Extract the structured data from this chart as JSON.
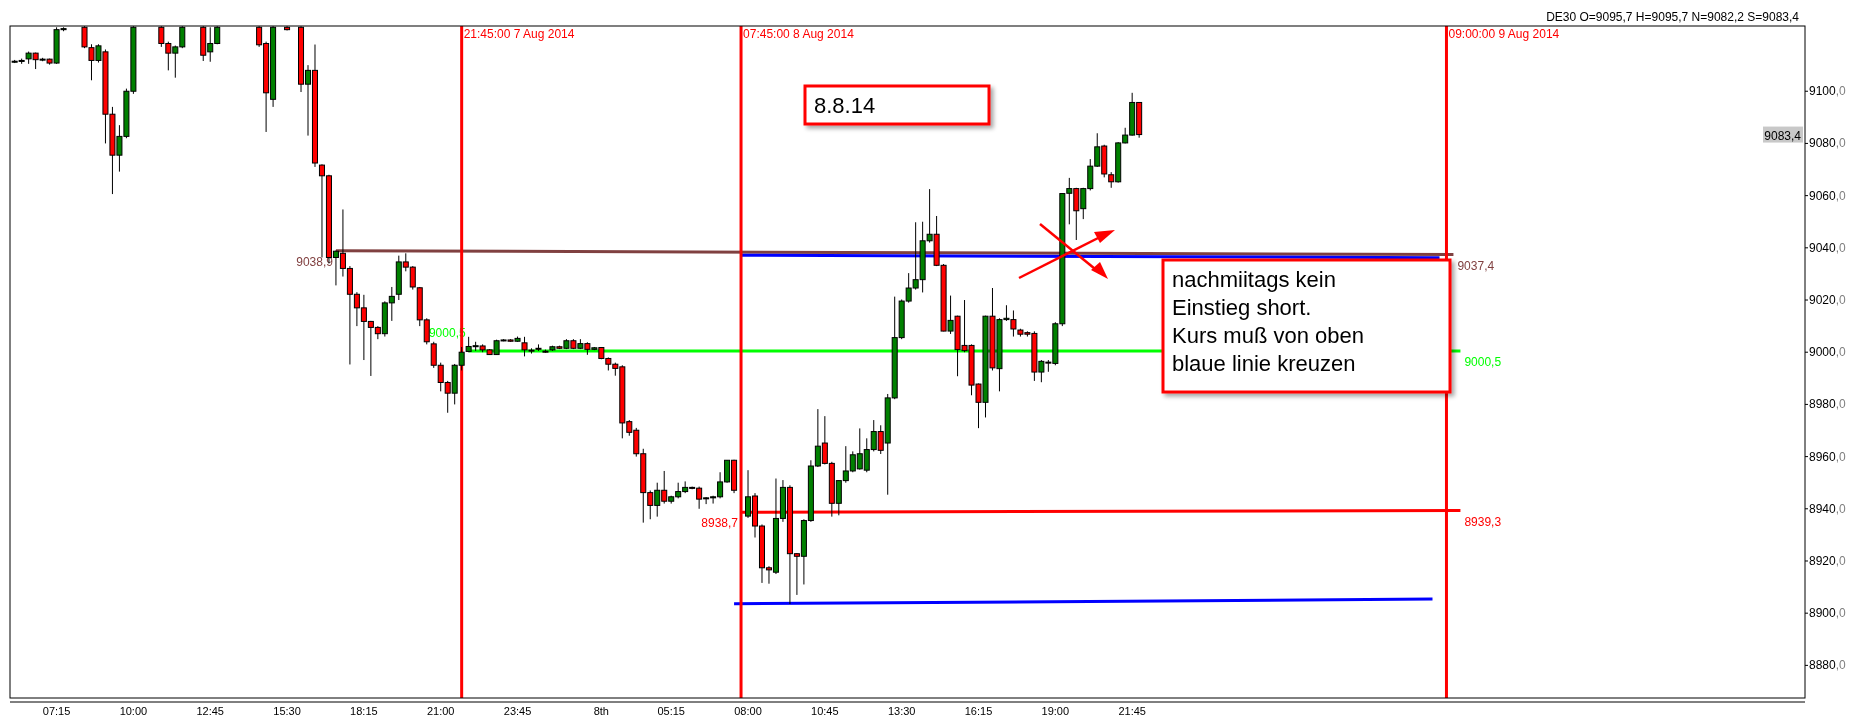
{
  "chart_data": {
    "type": "candlestick",
    "title": "DE30 O=9095,7 H=9095,7 N=9082,2 S=9083,4",
    "x": [
      "2014-08-07T05:45",
      "2014-08-07T06:00",
      "2014-08-07T06:15",
      "2014-08-07T06:30",
      "2014-08-07T06:45",
      "2014-08-07T07:00",
      "2014-08-07T07:15",
      "2014-08-07T07:30",
      "2014-08-07T08:15",
      "2014-08-07T08:30",
      "2014-08-07T08:45",
      "2014-08-07T09:00",
      "2014-08-07T09:15",
      "2014-08-07T09:30",
      "2014-08-07T09:45",
      "2014-08-07T10:00",
      "2014-08-07T11:00",
      "2014-08-07T11:15",
      "2014-08-07T11:30",
      "2014-08-07T11:45",
      "2014-08-07T12:30",
      "2014-08-07T12:45",
      "2014-08-07T13:00",
      "2014-08-07T14:30",
      "2014-08-07T14:45",
      "2014-08-07T15:00",
      "2014-08-07T15:30",
      "2014-08-07T16:00",
      "2014-08-07T16:15",
      "2014-08-07T16:30",
      "2014-08-07T16:45",
      "2014-08-07T17:00",
      "2014-08-07T17:15",
      "2014-08-07T17:30",
      "2014-08-07T17:45",
      "2014-08-07T18:00",
      "2014-08-07T18:15",
      "2014-08-07T18:30",
      "2014-08-07T18:45",
      "2014-08-07T19:00",
      "2014-08-07T19:15",
      "2014-08-07T19:30",
      "2014-08-07T19:45",
      "2014-08-07T20:00",
      "2014-08-07T20:15",
      "2014-08-07T20:30",
      "2014-08-07T20:45",
      "2014-08-07T21:00",
      "2014-08-07T21:15",
      "2014-08-07T21:30",
      "2014-08-07T21:45",
      "2014-08-07T22:00",
      "2014-08-07T22:15",
      "2014-08-07T22:30",
      "2014-08-07T22:45",
      "2014-08-07T23:00",
      "2014-08-07T23:15",
      "2014-08-07T23:30",
      "2014-08-07T23:45",
      "2014-08-08T00:00",
      "2014-08-08T00:15",
      "2014-08-08T00:30",
      "2014-08-08T00:45",
      "2014-08-08T01:00",
      "2014-08-08T01:15",
      "2014-08-08T01:30",
      "2014-08-08T01:45",
      "2014-08-08T02:00",
      "2014-08-08T02:15",
      "2014-08-08T02:30",
      "2014-08-08T02:45",
      "2014-08-08T03:00",
      "2014-08-08T03:15",
      "2014-08-08T03:30",
      "2014-08-08T03:45",
      "2014-08-08T04:00",
      "2014-08-08T04:15",
      "2014-08-08T04:30",
      "2014-08-08T04:45",
      "2014-08-08T05:00",
      "2014-08-08T05:15",
      "2014-08-08T05:30",
      "2014-08-08T05:45",
      "2014-08-08T06:00",
      "2014-08-08T06:15",
      "2014-08-08T06:30",
      "2014-08-08T06:45",
      "2014-08-08T07:00",
      "2014-08-08T07:15",
      "2014-08-08T07:30",
      "2014-08-08T08:00",
      "2014-08-08T08:15",
      "2014-08-08T08:30",
      "2014-08-08T08:45",
      "2014-08-08T09:00",
      "2014-08-08T09:15",
      "2014-08-08T09:30",
      "2014-08-08T09:45",
      "2014-08-08T10:00",
      "2014-08-08T10:15",
      "2014-08-08T10:30",
      "2014-08-08T10:45",
      "2014-08-08T11:00",
      "2014-08-08T11:15",
      "2014-08-08T11:30",
      "2014-08-08T11:45",
      "2014-08-08T12:00",
      "2014-08-08T12:15",
      "2014-08-08T12:30",
      "2014-08-08T12:45",
      "2014-08-08T13:00",
      "2014-08-08T13:15",
      "2014-08-08T13:30",
      "2014-08-08T13:45",
      "2014-08-08T14:00",
      "2014-08-08T14:15",
      "2014-08-08T14:30",
      "2014-08-08T14:45",
      "2014-08-08T15:00",
      "2014-08-08T15:15",
      "2014-08-08T15:30",
      "2014-08-08T15:45",
      "2014-08-08T16:00",
      "2014-08-08T16:15",
      "2014-08-08T16:30",
      "2014-08-08T16:45",
      "2014-08-08T17:00",
      "2014-08-08T17:15",
      "2014-08-08T17:30",
      "2014-08-08T17:45",
      "2014-08-08T18:00",
      "2014-08-08T18:15",
      "2014-08-08T18:30",
      "2014-08-08T18:45",
      "2014-08-08T19:00",
      "2014-08-08T19:15",
      "2014-08-08T19:30",
      "2014-08-08T19:45",
      "2014-08-08T20:00",
      "2014-08-08T20:15",
      "2014-08-08T20:30",
      "2014-08-08T20:45",
      "2014-08-08T21:00",
      "2014-08-08T21:15",
      "2014-08-08T21:30",
      "2014-08-08T21:45",
      "2014-08-08T22:00"
    ],
    "ohlc": [
      [
        9111.2,
        9112,
        9110.8,
        9111.5
      ],
      [
        9111.5,
        9112.5,
        9110.5,
        9111.8
      ],
      [
        9112.4,
        9115.2,
        9110.5,
        9114.6
      ],
      [
        9114.6,
        9114.8,
        9108.5,
        9112.1
      ],
      [
        9112.1,
        9112.8,
        9111.5,
        9112.3
      ],
      [
        9112.3,
        9112.5,
        9110.2,
        9110.8
      ],
      [
        9110.8,
        9124.5,
        9110.5,
        9123.6
      ],
      [
        9123.6,
        9124.5,
        9123,
        9124
      ],
      [
        9124.5,
        9124.9,
        9116.5,
        9117
      ],
      [
        9116.7,
        9118,
        9104.2,
        9111.8
      ],
      [
        9111.8,
        9118,
        9111,
        9117.4
      ],
      [
        9115.1,
        9116,
        9080,
        9091.2
      ],
      [
        9091.2,
        9094,
        9060.6,
        9075.5
      ],
      [
        9075.5,
        9087,
        9069.2,
        9082.7
      ],
      [
        9082.7,
        9101,
        9082,
        9100
      ],
      [
        9100,
        9124.9,
        9099,
        9124.5
      ],
      [
        9124.5,
        9124.9,
        9117,
        9118.3
      ],
      [
        9118.3,
        9119,
        9108,
        9114.6
      ],
      [
        9114.6,
        9117.5,
        9105.2,
        9117
      ],
      [
        9117,
        9124.9,
        9116.5,
        9124.5
      ],
      [
        9124.5,
        9124.9,
        9111.6,
        9113.8
      ],
      [
        9115.1,
        9124.5,
        9111.3,
        9118.3
      ],
      [
        9118.3,
        9124.9,
        9118,
        9124.5
      ],
      [
        9124.5,
        9124.9,
        9117,
        9117.8
      ],
      [
        9118.3,
        9119,
        9084.4,
        9099.4
      ],
      [
        9096.9,
        9124.9,
        9094,
        9124.5
      ],
      [
        9124.5,
        9124.9,
        9123.3,
        9123.6
      ],
      [
        9124.5,
        9124.9,
        9099.7,
        9102.7
      ],
      [
        9102.7,
        9110,
        9083,
        9108
      ],
      [
        9108,
        9117.9,
        9071,
        9072.5
      ],
      [
        9071.7,
        9072,
        9036.3,
        9067.6
      ],
      [
        9067.6,
        9068,
        9034,
        9036.3
      ],
      [
        9036.3,
        9039,
        9025.6,
        9038.7
      ],
      [
        9037.9,
        9054.7,
        9029,
        9032.1
      ],
      [
        9032.1,
        9033,
        8995.3,
        9022.2
      ],
      [
        9022.2,
        9023,
        9010,
        9017
      ],
      [
        9017,
        9022,
        8997,
        9011.8
      ],
      [
        9011.8,
        9012,
        8990.9,
        9009.5
      ],
      [
        9009.5,
        9010,
        9005,
        9007.1
      ],
      [
        9007.1,
        9019.5,
        9006,
        9018.9
      ],
      [
        9018.9,
        9025,
        9012,
        9021.4
      ],
      [
        9022.2,
        9037,
        9020,
        9034.6
      ],
      [
        9034.6,
        9037.9,
        9031,
        9032.6
      ],
      [
        9032.6,
        9033,
        9024,
        9025
      ],
      [
        9024.7,
        9025,
        9010,
        9012.4
      ],
      [
        9012.4,
        9013,
        9003,
        9004
      ],
      [
        9003.2,
        9004,
        8994,
        8995
      ],
      [
        8995,
        8996,
        8985,
        8988.4
      ],
      [
        8988.4,
        8989,
        8976.8,
        8984.3
      ],
      [
        8984.3,
        8995.5,
        8980,
        8995
      ],
      [
        8995,
        9002,
        8993,
        9000
      ],
      [
        9000.3,
        9005.9,
        9000,
        9002.2
      ],
      [
        9002.2,
        9004,
        9000.5,
        9002.5
      ],
      [
        9002.4,
        9003,
        9000,
        9000.9
      ],
      [
        9000.9,
        9001.2,
        8999,
        8999.1
      ],
      [
        8999.1,
        9004.8,
        8999,
        9004.4
      ],
      [
        9004.4,
        9005,
        9004.2,
        9004.7
      ],
      [
        9004.7,
        9005,
        9004,
        9004.2
      ],
      [
        9004.2,
        9006,
        9004,
        9005.3
      ],
      [
        9003.6,
        9005.9,
        8998.4,
        9000.9
      ],
      [
        9000.8,
        9001.5,
        8999.5,
        9000.5
      ],
      [
        9001.5,
        9003,
        9000.5,
        9001.3
      ],
      [
        9000.4,
        9001,
        8999.8,
        9000.3
      ],
      [
        9000.9,
        9002.5,
        9000.5,
        9002.1
      ],
      [
        9002.1,
        9002.5,
        9001.2,
        9001.5
      ],
      [
        9001.5,
        9005,
        9001.2,
        9004.4
      ],
      [
        9004.4,
        9005,
        9001.2,
        9001.5
      ],
      [
        9001.5,
        9005,
        9001.2,
        9003.3
      ],
      [
        9003.3,
        9003.8,
        8999,
        9001.1
      ],
      [
        9001.1,
        9002,
        9000.8,
        9001.7
      ],
      [
        9001.8,
        9002,
        8997.3,
        8997.6
      ],
      [
        8997.6,
        8998,
        8993,
        8995.4
      ],
      [
        8995.4,
        8996,
        8991,
        8993.8
      ],
      [
        8994.4,
        8995,
        8967,
        8972.9
      ],
      [
        8973.4,
        8974,
        8968,
        8969.3
      ],
      [
        8970.1,
        8971,
        8960,
        8961.1
      ],
      [
        8961.1,
        8963,
        8934.7,
        8946.2
      ],
      [
        8946.2,
        8947,
        8936,
        8941.3
      ],
      [
        8941.3,
        8950,
        8937,
        8947.1
      ],
      [
        8947.1,
        8954.5,
        8942,
        8942.9
      ],
      [
        8942.9,
        8945,
        8942,
        8944.6
      ],
      [
        8944.6,
        8950,
        8944,
        8946.6
      ],
      [
        8946.6,
        8950.5,
        8946,
        8948.2
      ],
      [
        8948.2,
        8948.5,
        8947.5,
        8947.9
      ],
      [
        8947.9,
        8948.5,
        8940,
        8943.7
      ],
      [
        8943.9,
        8944.5,
        8941.8,
        8944.2
      ],
      [
        8944.2,
        8945,
        8942,
        8944.6
      ],
      [
        8944.6,
        8954,
        8944,
        8950.3
      ],
      [
        8950.3,
        8958.6,
        8950,
        8958.6
      ],
      [
        8958.6,
        8958.8,
        8946,
        8947.1
      ],
      [
        8937.2,
        8954.8,
        8936.5,
        8944.6
      ],
      [
        8944.9,
        8946,
        8929,
        8933.4
      ],
      [
        8933.4,
        8934,
        8911.6,
        8917.4
      ],
      [
        8917.4,
        8918,
        8911.3,
        8916.6
      ],
      [
        8915.7,
        8951.6,
        8915,
        8936.3
      ],
      [
        8936.3,
        8951,
        8935,
        8948.2
      ],
      [
        8948.2,
        8949,
        8903.5,
        8922.8
      ],
      [
        8922.8,
        8923,
        8907,
        8921.8
      ],
      [
        8921.8,
        8936,
        8911,
        8935.5
      ],
      [
        8935.5,
        8958.6,
        8935,
        8956.4
      ],
      [
        8956.4,
        8978.2,
        8956,
        8964
      ],
      [
        8965.2,
        8975.5,
        8957,
        8957.4
      ],
      [
        8957.4,
        8958,
        8937,
        8942.1
      ],
      [
        8942.1,
        8951,
        8937.5,
        8950.8
      ],
      [
        8950.8,
        8964,
        8950,
        8954.5
      ],
      [
        8954.5,
        8962,
        8954,
        8960.7
      ],
      [
        8955.3,
        8970.8,
        8955,
        8961.1
      ],
      [
        8954.8,
        8967,
        8954,
        8962.7
      ],
      [
        8962.7,
        8974,
        8962,
        8969.6
      ],
      [
        8969.6,
        8972,
        8961,
        8962.4
      ],
      [
        8965.2,
        8984,
        8945.4,
        8982.5
      ],
      [
        8982.5,
        9021.3,
        8982,
        9005.6
      ],
      [
        9005.6,
        9020.2,
        9005,
        9019.6
      ],
      [
        9019.6,
        9030.3,
        9019,
        9024.6
      ],
      [
        9024.6,
        9049.8,
        9024,
        9027.8
      ],
      [
        9027.8,
        9050,
        9022.9,
        9042.7
      ],
      [
        9042.7,
        9062.5,
        9042,
        9045.2
      ],
      [
        9045.2,
        9052.2,
        9033,
        9033.3
      ],
      [
        9033.3,
        9033.8,
        9008,
        9008.1
      ],
      [
        9008.1,
        9021.7,
        9007,
        9012.2
      ],
      [
        9013.8,
        9014,
        8990.8,
        9001
      ],
      [
        9002.6,
        9020,
        9000,
        9000.6
      ],
      [
        9002.6,
        9003,
        8983.5,
        8987.4
      ],
      [
        8987.8,
        8988,
        8970.9,
        8980.8
      ],
      [
        8980.8,
        9014,
        8975,
        9013.8
      ],
      [
        9013.8,
        9024.6,
        8993,
        8994
      ],
      [
        8993.7,
        9013,
        8985,
        9012.5
      ],
      [
        9012.5,
        9018,
        9012,
        9013
      ],
      [
        9012.5,
        9016,
        9006,
        9008.9
      ],
      [
        9008.5,
        9009,
        9006,
        9006.9
      ],
      [
        9007.5,
        9008,
        9006,
        9006.9
      ],
      [
        9007.2,
        9008,
        8989,
        8992.4
      ],
      [
        8992.4,
        8997,
        8988.5,
        8996.5
      ],
      [
        8996.2,
        8997,
        8992.5,
        8996
      ],
      [
        8995.7,
        9011.5,
        8995,
        9010.9
      ],
      [
        9010.9,
        9061,
        9010,
        9060.8
      ],
      [
        9060.9,
        9066.8,
        9049,
        9062.7
      ],
      [
        9062.7,
        9063,
        9043,
        9054.2
      ],
      [
        9055,
        9063,
        9051,
        9062.7
      ],
      [
        9062.7,
        9074,
        9062,
        9071.3
      ],
      [
        9071.3,
        9083.9,
        9071,
        9078.7
      ],
      [
        9079,
        9079.5,
        9067,
        9068.3
      ],
      [
        9068,
        9069,
        9063,
        9065.3
      ],
      [
        9065.3,
        9080.5,
        9065,
        9080.2
      ],
      [
        9080.2,
        9086,
        9080,
        9083.2
      ],
      [
        9083.2,
        9099.4,
        9083,
        9095.7
      ],
      [
        9095.7,
        9095.7,
        9082.2,
        9083.4
      ]
    ],
    "colors": [
      "#008000",
      "#008000",
      "#008000",
      "#ff0000",
      "#008000",
      "#ff0000",
      "#008000",
      "#008000",
      "#ff0000",
      "#ff0000",
      "#008000",
      "#ff0000",
      "#ff0000",
      "#008000",
      "#008000",
      "#008000",
      "#ff0000",
      "#ff0000",
      "#008000",
      "#008000",
      "#ff0000",
      "#008000",
      "#008000",
      "#ff0000",
      "#ff0000",
      "#008000",
      "#ff0000",
      "#ff0000",
      "#008000",
      "#ff0000",
      "#ff0000",
      "#ff0000",
      "#008000",
      "#ff0000",
      "#ff0000",
      "#ff0000",
      "#ff0000",
      "#ff0000",
      "#ff0000",
      "#008000",
      "#008000",
      "#008000",
      "#ff0000",
      "#ff0000",
      "#ff0000",
      "#ff0000",
      "#ff0000",
      "#ff0000",
      "#ff0000",
      "#008000",
      "#008000",
      "#008000",
      "#008000",
      "#ff0000",
      "#ff0000",
      "#008000",
      "#008000",
      "#ff0000",
      "#008000",
      "#ff0000",
      "#ff0000",
      "#ff0000",
      "#ff0000",
      "#008000",
      "#ff0000",
      "#008000",
      "#ff0000",
      "#008000",
      "#ff0000",
      "#008000",
      "#ff0000",
      "#ff0000",
      "#ff0000",
      "#ff0000",
      "#ff0000",
      "#ff0000",
      "#ff0000",
      "#ff0000",
      "#008000",
      "#ff0000",
      "#008000",
      "#008000",
      "#008000",
      "#ff0000",
      "#ff0000",
      "#008000",
      "#008000",
      "#008000",
      "#008000",
      "#ff0000",
      "#008000",
      "#ff0000",
      "#ff0000",
      "#ff0000",
      "#008000",
      "#008000",
      "#ff0000",
      "#ff0000",
      "#008000",
      "#008000",
      "#008000",
      "#ff0000",
      "#ff0000",
      "#008000",
      "#008000",
      "#008000",
      "#008000",
      "#008000",
      "#008000",
      "#ff0000",
      "#008000",
      "#008000",
      "#008000",
      "#008000",
      "#008000",
      "#008000",
      "#008000",
      "#ff0000",
      "#ff0000",
      "#008000",
      "#ff0000",
      "#ff0000",
      "#ff0000",
      "#ff0000",
      "#008000",
      "#ff0000",
      "#008000",
      "#008000",
      "#ff0000",
      "#ff0000",
      "#ff0000",
      "#ff0000",
      "#008000",
      "#ff0000",
      "#008000",
      "#008000",
      "#008000",
      "#ff0000",
      "#008000",
      "#008000",
      "#008000",
      "#ff0000",
      "#ff0000",
      "#008000",
      "#008000",
      "#008000",
      "#ff0000"
    ],
    "series": [
      {
        "type": "line",
        "color": "#804040",
        "x": [
          "2014-08-07T17:15",
          "2014-08-09T09:15"
        ],
        "values": [
          9038.9,
          9037.4
        ],
        "value_labels": [
          "9038,9",
          "9037,4"
        ]
      },
      {
        "type": "line",
        "color": "#0000ff",
        "x": [
          "2014-08-08T07:45",
          "2014-08-09T08:45"
        ],
        "values": [
          9037.2,
          9036.2
        ]
      },
      {
        "type": "line",
        "color": "#00ff00",
        "x": [
          "2014-08-07T22:00",
          "2014-08-09T09:30"
        ],
        "values": [
          9000.5,
          9000.5
        ],
        "value_labels": [
          "9000,5",
          "9000,5"
        ]
      },
      {
        "type": "line",
        "color": "#ff0000",
        "x": [
          "2014-08-08T07:45",
          "2014-08-09T09:30"
        ],
        "values": [
          8938.7,
          8939.3
        ],
        "value_labels": [
          "8938,7",
          "8939,3"
        ]
      },
      {
        "type": "line",
        "color": "#0000ff",
        "x": [
          "2014-08-08T07:30",
          "2014-08-09T08:30"
        ],
        "values": [
          8903.6,
          8905.4
        ]
      }
    ],
    "ref_lines": [
      {
        "axis": "x",
        "value": "2014-08-07T21:45",
        "label": "21:45:00 7 Aug 2014",
        "color": "#ff0000"
      },
      {
        "axis": "x",
        "value": "2014-08-08T07:45",
        "label": "07:45:00 8 Aug 2014",
        "color": "#ff0000"
      },
      {
        "axis": "x",
        "value": "2014-08-09T09:00",
        "label": "09:00:00 9 Aug 2014",
        "color": "#ff0000"
      }
    ],
    "annotations": [
      "8.8.14",
      "nachmiitags kein\nEinstieg short.\nKurs muß von oben\nblaue linie kreuzen",
      {
        "text": "9083,4",
        "y": 9083.4
      }
    ],
    "xlim": [
      "2014-08-07T05:35",
      "2014-08-09T21:50"
    ],
    "xticks": [
      {
        "value": "2014-08-07T07:15",
        "label": "07:15"
      },
      {
        "value": "2014-08-07T10:00",
        "label": "10:00"
      },
      {
        "value": "2014-08-07T12:45",
        "label": "12:45"
      },
      {
        "value": "2014-08-07T15:30",
        "label": "15:30"
      },
      {
        "value": "2014-08-07T18:15",
        "label": "18:15"
      },
      {
        "value": "2014-08-07T21:00",
        "label": "21:00"
      },
      {
        "value": "2014-08-07T23:45",
        "label": "23:45"
      },
      {
        "value": "2014-08-08T02:45",
        "label": "8th"
      },
      {
        "value": "2014-08-08T05:15",
        "label": "05:15"
      },
      {
        "value": "2014-08-08T08:00",
        "label": "08:00"
      },
      {
        "value": "2014-08-08T10:45",
        "label": "10:45"
      },
      {
        "value": "2014-08-08T13:30",
        "label": "13:30"
      },
      {
        "value": "2014-08-08T16:15",
        "label": "16:15"
      },
      {
        "value": "2014-08-08T19:00",
        "label": "19:00"
      },
      {
        "value": "2014-08-08T21:45",
        "label": "21:45"
      }
    ],
    "ylim": [
      8867.5,
      9125
    ],
    "yticks": [
      {
        "value": 8880,
        "label": "8880,0"
      },
      {
        "value": 8900,
        "label": "8900,0"
      },
      {
        "value": 8920,
        "label": "8920,0"
      },
      {
        "value": 8940,
        "label": "8940,0"
      },
      {
        "value": 8960,
        "label": "8960,0"
      },
      {
        "value": 8980,
        "label": "8980,0"
      },
      {
        "value": 9000,
        "label": "9000,0"
      },
      {
        "value": 9020,
        "label": "9020,0"
      },
      {
        "value": 9040,
        "label": "9040,0"
      },
      {
        "value": 9060,
        "label": "9060,0"
      },
      {
        "value": 9080,
        "label": "9080,0"
      },
      {
        "value": 9100,
        "label": "9100,0"
      }
    ]
  }
}
